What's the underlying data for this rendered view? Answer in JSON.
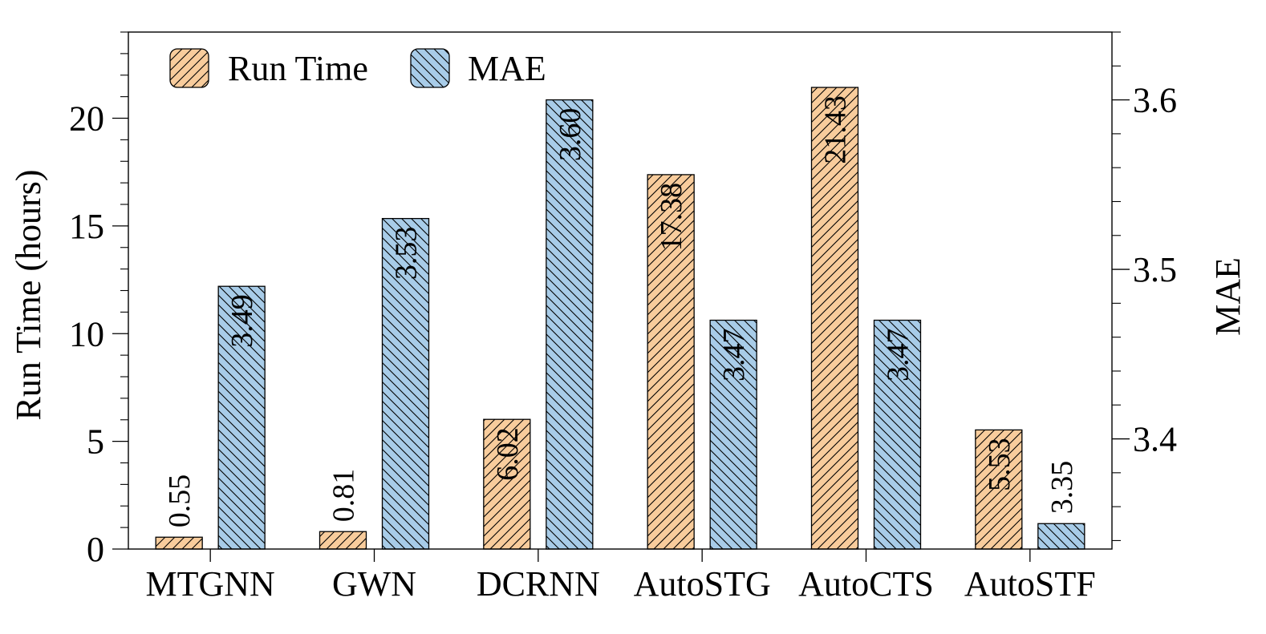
{
  "chart_data": {
    "type": "bar",
    "categories": [
      "MTGNN",
      "GWN",
      "DCRNN",
      "AutoSTG",
      "AutoCTS",
      "AutoSTF"
    ],
    "series": [
      {
        "name": "Run Time",
        "axis": "left",
        "color": "#f8cc9c",
        "hatch": "forward-diagonal",
        "values": [
          0.55,
          0.81,
          6.02,
          17.38,
          21.43,
          5.53
        ]
      },
      {
        "name": "MAE",
        "axis": "right",
        "color": "#a8cce8",
        "hatch": "backward-diagonal",
        "values": [
          3.49,
          3.53,
          3.6,
          3.47,
          3.47,
          3.35
        ]
      }
    ],
    "data_labels": {
      "Run Time": [
        "0.55",
        "0.81",
        "6.02",
        "17.38",
        "21.43",
        "5.53"
      ],
      "MAE": [
        "3.49",
        "3.53",
        "3.60",
        "3.47",
        "3.47",
        "3.35"
      ]
    },
    "ylabel": "Run Time (hours)",
    "y2label": "MAE",
    "ylim": [
      0,
      24
    ],
    "y2lim": [
      3.335,
      3.64
    ],
    "yticks": [
      "0",
      "5",
      "10",
      "15",
      "20"
    ],
    "y2ticks": [
      "3.4",
      "3.5",
      "3.6"
    ],
    "grid": false,
    "legend": "top-left"
  }
}
